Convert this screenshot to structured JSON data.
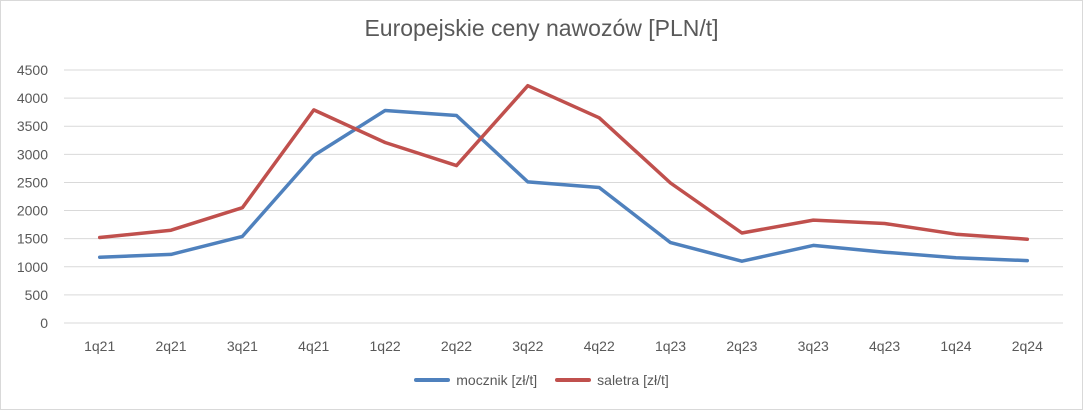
{
  "chart_data": {
    "type": "line",
    "title": "Europejskie ceny nawozów [PLN/t]",
    "xlabel": "",
    "ylabel": "",
    "categories": [
      "1q21",
      "2q21",
      "3q21",
      "4q21",
      "1q22",
      "2q22",
      "3q22",
      "4q22",
      "1q23",
      "2q23",
      "3q23",
      "4q23",
      "1q24",
      "2q24"
    ],
    "ylim": [
      0,
      4500
    ],
    "yticks": [
      0,
      500,
      1000,
      1500,
      2000,
      2500,
      3000,
      3500,
      4000,
      4500
    ],
    "grid": true,
    "legend_position": "bottom",
    "series": [
      {
        "name": "mocznik [zł/t]",
        "color": "#4f81bd",
        "values": [
          1170,
          1220,
          1540,
          2980,
          3780,
          3690,
          2510,
          2410,
          1430,
          1100,
          1380,
          1260,
          1160,
          1110
        ]
      },
      {
        "name": "saletra [zł/t]",
        "color": "#c0504d",
        "values": [
          1520,
          1650,
          2050,
          3790,
          3210,
          2800,
          4220,
          3650,
          2490,
          1600,
          1830,
          1770,
          1580,
          1490
        ]
      }
    ]
  }
}
